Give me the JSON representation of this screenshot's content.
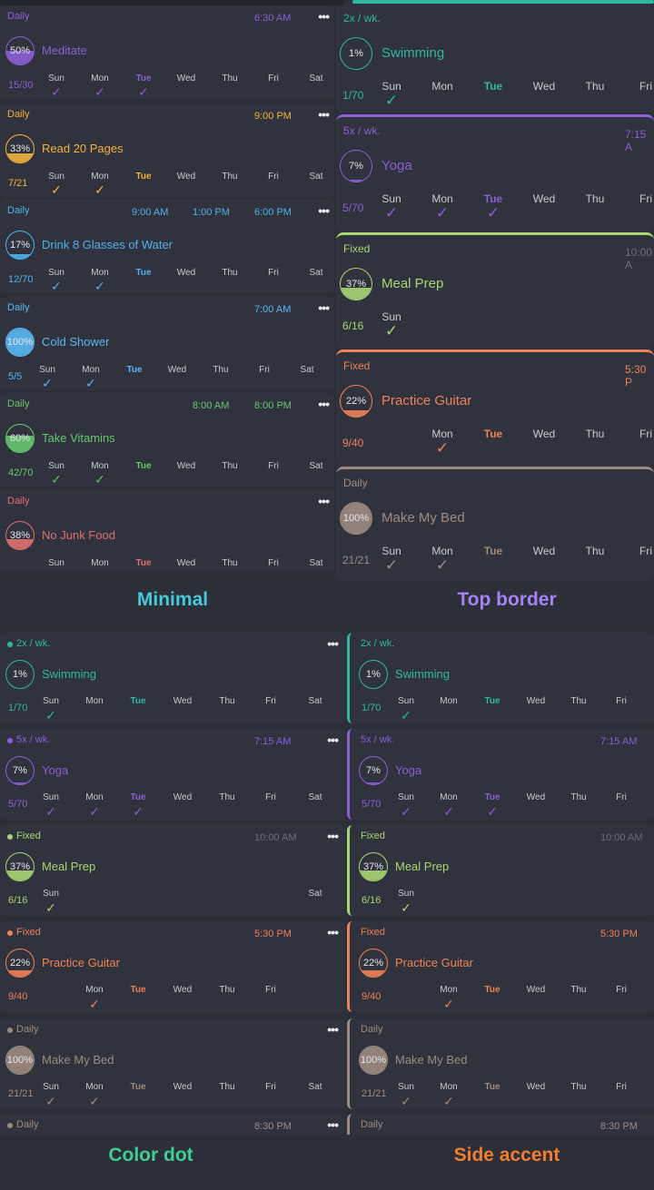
{
  "days": [
    "Sun",
    "Mon",
    "Tue",
    "Wed",
    "Thu",
    "Fri",
    "Sat"
  ],
  "colors": {
    "purple": "#8c5fd6",
    "orange_yellow": "#f2b33d",
    "blue": "#4fb3ea",
    "light_blue": "#5ab8f3",
    "green": "#67c76f",
    "red": "#e0706f",
    "teal": "#2fb8a1",
    "lime": "#a8d672",
    "coral": "#ee8258",
    "taupe": "#9e8b80"
  },
  "labels": {
    "minimal": "Minimal",
    "top_border": "Top border",
    "color_dot": "Color dot",
    "side_accent": "Side accent"
  },
  "minimal": [
    {
      "freq": "Daily",
      "times": [
        "6:30 AM"
      ],
      "pct": "50%",
      "name": "Meditate",
      "count": "15/30",
      "checked": [
        0,
        1,
        2
      ],
      "today": 2
    },
    {
      "freq": "Daily",
      "times": [
        "9:00 PM"
      ],
      "pct": "33%",
      "name": "Read 20 Pages",
      "count": "7/21",
      "checked": [
        0,
        1
      ],
      "today": 2
    },
    {
      "freq": "Daily",
      "times": [
        "9:00 AM",
        "1:00 PM",
        "6:00 PM"
      ],
      "pct": "17%",
      "name": "Drink 8 Glasses of Water",
      "count": "12/70",
      "checked": [
        0,
        1
      ],
      "today": 2
    },
    {
      "freq": "Daily",
      "times": [
        "7:00 AM"
      ],
      "pct": "100%",
      "name": "Cold Shower",
      "count": "5/5",
      "checked": [
        0,
        1
      ],
      "today": 2
    },
    {
      "freq": "Daily",
      "times": [
        "8:00 AM",
        "8:00 PM"
      ],
      "pct": "60%",
      "name": "Take Vitamins",
      "count": "42/70",
      "checked": [
        0,
        1
      ],
      "today": 2
    },
    {
      "freq": "Daily",
      "times": [],
      "pct": "38%",
      "name": "No Junk Food",
      "count": "",
      "checked": [],
      "today": 2
    }
  ],
  "top_border": [
    {
      "freq": "2x / wk.",
      "time": "",
      "pct": "1%",
      "name": "Swimming",
      "count": "1/70",
      "days": [
        "Sun",
        "Mon",
        "Tue",
        "Wed",
        "Thu",
        "Fri"
      ],
      "checked": [
        0
      ],
      "today": 2
    },
    {
      "freq": "5x / wk.",
      "time": "7:15 A",
      "pct": "7%",
      "name": "Yoga",
      "count": "5/70",
      "days": [
        "Sun",
        "Mon",
        "Tue",
        "Wed",
        "Thu",
        "Fri"
      ],
      "checked": [
        0,
        1,
        2
      ],
      "today": 2
    },
    {
      "freq": "Fixed",
      "time": "10:00 A",
      "pct": "37%",
      "name": "Meal Prep",
      "count": "6/16",
      "days": [
        "Sun"
      ],
      "checked": [
        0
      ],
      "today": -1
    },
    {
      "freq": "Fixed",
      "time": "5:30 P",
      "pct": "22%",
      "name": "Practice Guitar",
      "count": "9/40",
      "days": [
        "Mon",
        "Tue",
        "Wed",
        "Thu",
        "Fri"
      ],
      "checked": [
        0
      ],
      "today": 1
    },
    {
      "freq": "Daily",
      "time": "",
      "pct": "100%",
      "name": "Make My Bed",
      "count": "21/21",
      "days": [
        "Sun",
        "Mon",
        "Tue",
        "Wed",
        "Thu",
        "Fri"
      ],
      "checked": [
        0,
        1
      ],
      "today": 2
    }
  ],
  "color_dot": [
    {
      "freq": "2x / wk.",
      "time": "",
      "pct": "1%",
      "name": "Swimming",
      "count": "1/70",
      "checked": [
        0
      ],
      "today": 2,
      "days": [
        "Sun",
        "Mon",
        "Tue",
        "Wed",
        "Thu",
        "Fri",
        "Sat"
      ]
    },
    {
      "freq": "5x / wk.",
      "time": "7:15 AM",
      "pct": "7%",
      "name": "Yoga",
      "count": "5/70",
      "checked": [
        0,
        1,
        2
      ],
      "today": 2,
      "days": [
        "Sun",
        "Mon",
        "Tue",
        "Wed",
        "Thu",
        "Fri",
        "Sat"
      ]
    },
    {
      "freq": "Fixed",
      "time": "10:00 AM",
      "pct": "37%",
      "name": "Meal Prep",
      "count": "6/16",
      "checked": [
        0
      ],
      "today": -1,
      "days": [
        "Sun",
        "Sat"
      ]
    },
    {
      "freq": "Fixed",
      "time": "5:30 PM",
      "pct": "22%",
      "name": "Practice Guitar",
      "count": "9/40",
      "checked": [
        0
      ],
      "today": 1,
      "days": [
        "Mon",
        "Tue",
        "Wed",
        "Thu",
        "Fri"
      ]
    },
    {
      "freq": "Daily",
      "time": "",
      "pct": "100%",
      "name": "Make My Bed",
      "count": "21/21",
      "checked": [
        0,
        1
      ],
      "today": 2,
      "days": [
        "Sun",
        "Mon",
        "Tue",
        "Wed",
        "Thu",
        "Fri",
        "Sat"
      ]
    },
    {
      "freq": "Daily",
      "time": "8:30 PM",
      "pct": "",
      "name": "",
      "count": "",
      "checked": [],
      "today": -1,
      "days": []
    }
  ],
  "side_accent": [
    {
      "freq": "2x / wk.",
      "time": "",
      "pct": "1%",
      "name": "Swimming",
      "count": "1/70",
      "checked": [
        0
      ],
      "today": 2,
      "days": [
        "Sun",
        "Mon",
        "Tue",
        "Wed",
        "Thu",
        "Fri"
      ]
    },
    {
      "freq": "5x / wk.",
      "time": "7:15 AM",
      "pct": "7%",
      "name": "Yoga",
      "count": "5/70",
      "checked": [
        0,
        1,
        2
      ],
      "today": 2,
      "days": [
        "Sun",
        "Mon",
        "Tue",
        "Wed",
        "Thu",
        "Fri"
      ]
    },
    {
      "freq": "Fixed",
      "time": "10:00 AM",
      "pct": "37%",
      "name": "Meal Prep",
      "count": "6/16",
      "checked": [
        0
      ],
      "today": -1,
      "days": [
        "Sun"
      ]
    },
    {
      "freq": "Fixed",
      "time": "5:30 PM",
      "pct": "22%",
      "name": "Practice Guitar",
      "count": "9/40",
      "checked": [
        0
      ],
      "today": 1,
      "days": [
        "Mon",
        "Tue",
        "Wed",
        "Thu",
        "Fri"
      ]
    },
    {
      "freq": "Daily",
      "time": "",
      "pct": "100%",
      "name": "Make My Bed",
      "count": "21/21",
      "checked": [
        0,
        1
      ],
      "today": 2,
      "days": [
        "Sun",
        "Mon",
        "Tue",
        "Wed",
        "Thu",
        "Fri"
      ]
    },
    {
      "freq": "Daily",
      "time": "8:30 PM",
      "pct": "",
      "name": "",
      "count": "",
      "checked": [],
      "today": -1,
      "days": []
    }
  ]
}
